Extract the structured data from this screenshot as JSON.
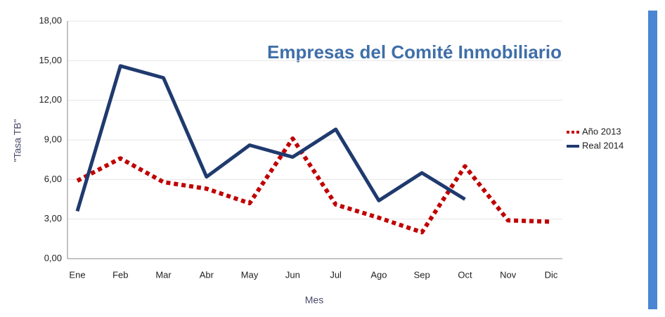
{
  "chart_data": {
    "type": "line",
    "title": "Empresas del Comité Inmobiliario",
    "xlabel": "Mes",
    "ylabel": "\"Tasa TB\"",
    "categories": [
      "Ene",
      "Feb",
      "Mar",
      "Abr",
      "May",
      "Jun",
      "Jul",
      "Ago",
      "Sep",
      "Oct",
      "Nov",
      "Dic"
    ],
    "series": [
      {
        "name": "Año 2013",
        "color": "#c00000",
        "dashed": true,
        "values": [
          5.9,
          7.6,
          5.8,
          5.3,
          4.2,
          9.1,
          4.1,
          3.1,
          2.0,
          7.0,
          2.9,
          2.8
        ]
      },
      {
        "name": "Real 2014",
        "color": "#1f3a6e",
        "dashed": false,
        "values": [
          3.6,
          14.6,
          13.7,
          6.2,
          8.6,
          7.7,
          9.8,
          4.4,
          6.5,
          4.5,
          null,
          null
        ]
      }
    ],
    "ylim": [
      0,
      18
    ],
    "yticks": [
      {
        "value": 0,
        "label": "0,00"
      },
      {
        "value": 3,
        "label": "3,00"
      },
      {
        "value": 6,
        "label": "6,00"
      },
      {
        "value": 9,
        "label": "9,00"
      },
      {
        "value": 12,
        "label": "12,00"
      },
      {
        "value": 15,
        "label": "15,00"
      },
      {
        "value": 18,
        "label": "18,00"
      }
    ],
    "grid": true,
    "legend": "right"
  }
}
